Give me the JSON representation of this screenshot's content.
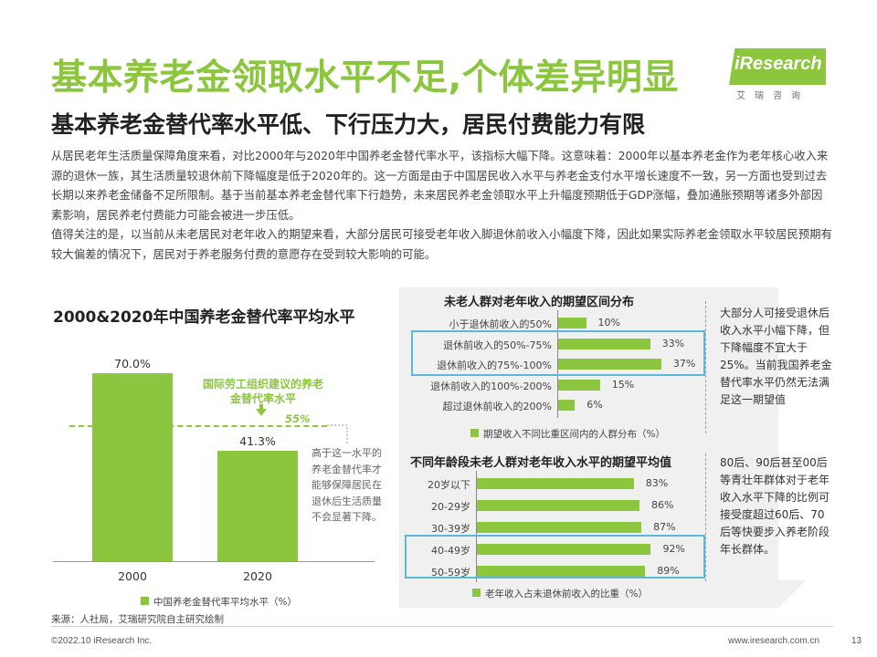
{
  "header": {
    "title": "基本养老金领取水平不足,个体差异明显",
    "subtitle": "基本养老金替代率水平低、下行压力大，居民付费能力有限",
    "logo_text": "iResearch",
    "logo_sub": "艾瑞咨询"
  },
  "body": {
    "para1": "从居民老年生活质量保障角度来看，对比2000年与2020年中国养老金替代率水平，该指标大幅下降。这意味着：2000年以基本养老金作为老年核心收入来源的退休一族，其生活质量较退休前下降幅度是低于2020年的。这一方面是由于中国居民收入水平与养老金支付水平增长速度不一致，另一方面也受到过去长期以来养老金储备不足所限制。基于当前基本养老金替代率下行趋势，未来居民养老金领取水平上升幅度预期低于GDP涨幅，叠加通胀预期等诸多外部因素影响，居民养老付费能力可能会被进一步压低。",
    "para2": "值得关注的是，以当前从未老居民对老年收入的期望来看，大部分居民可接受老年收入脚退休前收入小幅度下降，因此如果实际养老金领取水平较居民预期有较大偏差的情况下，居民对于养老服务付费的意愿存在受到较大影响的可能。"
  },
  "left_chart": {
    "ilo_label": "国际劳工组织建议的养老金替代率水平",
    "ilo_value": "55%",
    "note": "高于这一水平的养老金替代率才能够保障居民在退休后生活质量不会显著下降。",
    "legend": "中国养老金替代率平均水平（%）"
  },
  "right_panel": {
    "chart1_legend": "期望收入不同比重区间内的人群分布（%）",
    "chart2_legend": "老年收入占未退休前收入的比重（%）",
    "note1": "大部分人可接受退休后收入水平小幅下降，但下降幅度不宜大于25%。当前我国养老金替代率水平仍然无法满足这一期望值",
    "note2": "80后、90后甚至00后等青壮年群体对于老年收入水平下降的比例可接受度超过60后、70后等快要步入养老阶段年长群体。"
  },
  "footer": {
    "source": "来源：人社局，艾瑞研究院自主研究绘制",
    "copyright": "©2022.10 iResearch Inc.",
    "website": "www.iresearch.com.cn",
    "page": "13"
  },
  "colors": {
    "accent": "#8cc63f",
    "highlight": "#5bb8d6",
    "panel": "#f0f0f0"
  },
  "chart_data": [
    {
      "type": "bar",
      "title": "2000&2020年中国养老金替代率平均水平",
      "categories": [
        "2000",
        "2020"
      ],
      "values": [
        70.0,
        41.3
      ],
      "value_labels": [
        "70.0%",
        "41.3%"
      ],
      "reference_line": 55,
      "ylim": [
        0,
        80
      ]
    },
    {
      "type": "bar",
      "orientation": "horizontal",
      "title": "未老人群对老年收入的期望区间分布",
      "categories": [
        "小于退休前收入的50%",
        "退休前收入的50%-75%",
        "退休前收入的75%-100%",
        "退休前收入的100%-200%",
        "超过退休前收入的200%"
      ],
      "values": [
        10,
        33,
        37,
        15,
        6
      ],
      "value_labels": [
        "10%",
        "33%",
        "37%",
        "15%",
        "6%"
      ],
      "xlim": [
        0,
        40
      ]
    },
    {
      "type": "bar",
      "orientation": "horizontal",
      "title": "不同年龄段未老人群对老年收入水平的期望平均值",
      "categories": [
        "20岁以下",
        "20-29岁",
        "30-39岁",
        "40-49岁",
        "50-59岁"
      ],
      "values": [
        83,
        86,
        87,
        92,
        89
      ],
      "value_labels": [
        "83%",
        "86%",
        "87%",
        "92%",
        "89%"
      ],
      "xlim": [
        0,
        100
      ]
    }
  ]
}
